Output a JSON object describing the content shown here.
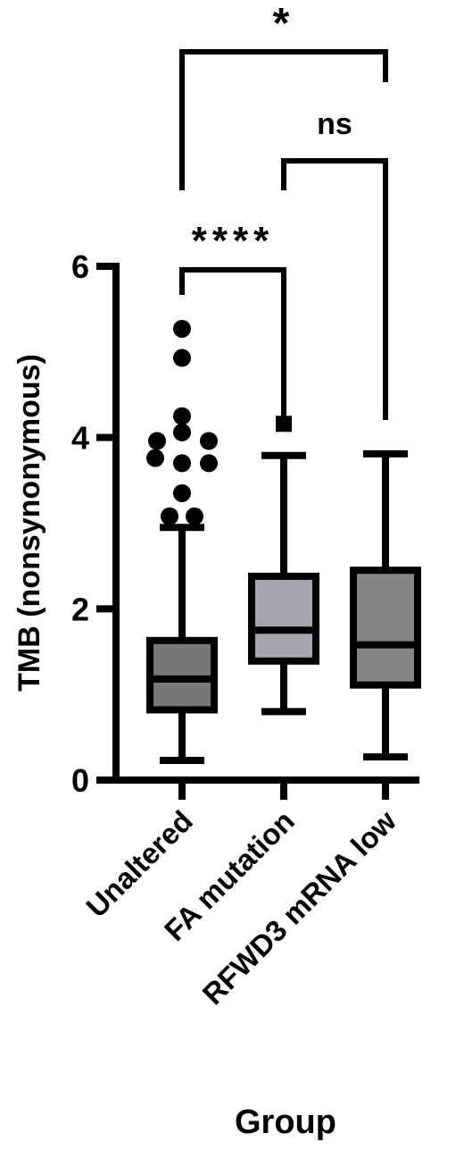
{
  "chart_data": {
    "type": "box",
    "xlabel": "Group",
    "ylabel": "TMB (nonsynonymous)",
    "categories": [
      "Unaltered",
      "FA mutation",
      "RFWD3 mRNA low"
    ],
    "boxes": [
      {
        "whisker_low": 0.23,
        "q1": 0.82,
        "median": 1.18,
        "q3": 1.63,
        "whisker_high": 2.95,
        "color": "#777777",
        "outliers": [
          5.27,
          4.93,
          4.25,
          4.06,
          3.96,
          3.96,
          3.76,
          3.7,
          3.7,
          3.35,
          3.08,
          3.08
        ]
      },
      {
        "whisker_low": 0.8,
        "q1": 1.39,
        "median": 1.75,
        "q3": 2.38,
        "whisker_high": 3.79,
        "color": "#a5a5ad",
        "outliers": [
          4.16
        ]
      },
      {
        "whisker_low": 0.27,
        "q1": 1.11,
        "median": 1.58,
        "q3": 2.45,
        "whisker_high": 3.81,
        "color": "#858585",
        "outliers": []
      }
    ],
    "ylim": [
      0,
      6
    ],
    "yticks": [
      0,
      2,
      4,
      6
    ],
    "annotations": [
      {
        "label": "****",
        "between": [
          "Unaltered",
          "FA mutation"
        ]
      },
      {
        "label": "ns",
        "between": [
          "FA mutation",
          "RFWD3 mRNA low"
        ]
      },
      {
        "label": "*",
        "between": [
          "Unaltered",
          "RFWD3 mRNA low"
        ]
      }
    ]
  }
}
